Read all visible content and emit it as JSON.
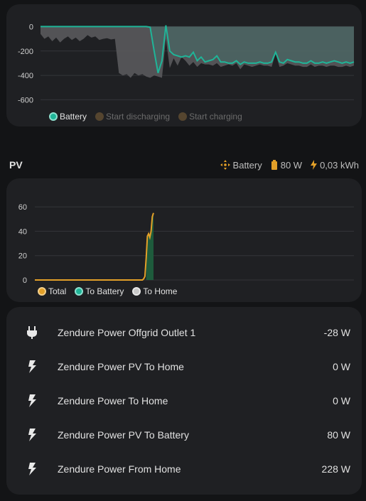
{
  "battery_chart": {
    "chart_data": {
      "type": "area",
      "y_ticks": [
        "0",
        "-200",
        "-400",
        "-600"
      ],
      "ylim": [
        -650,
        20
      ],
      "grid": true,
      "series": [
        {
          "name": "Battery",
          "color": "#1fb598",
          "values": [
            0,
            0,
            0,
            0,
            0,
            0,
            0,
            0,
            0,
            0,
            0,
            0,
            0,
            0,
            0,
            0,
            0,
            0,
            0,
            0,
            0,
            0,
            0,
            0,
            0,
            0,
            0,
            0,
            -5,
            -200,
            -380,
            -280,
            10,
            -200,
            -230,
            -240,
            -250,
            -240,
            -250,
            -210,
            -280,
            -250,
            -290,
            -280,
            -270,
            -240,
            -290,
            -290,
            -300,
            -300,
            -280,
            -310,
            -290,
            -300,
            -300,
            -300,
            -290,
            -300,
            -300,
            -290,
            -210,
            -290,
            -300,
            -270,
            -280,
            -290,
            -290,
            -300,
            -300,
            -280,
            -300,
            -300,
            -290,
            -300,
            -290,
            -280,
            -290,
            -300,
            -290,
            -300,
            -290
          ]
        },
        {
          "name": "Start discharging",
          "color": "#55452f",
          "values": []
        },
        {
          "name": "Start charging",
          "color": "#55452f",
          "values": []
        }
      ],
      "area_values": [
        -60,
        -100,
        -80,
        -120,
        -90,
        -130,
        -100,
        -80,
        -110,
        -90,
        -120,
        -100,
        -70,
        -90,
        -80,
        -110,
        -100,
        -95,
        -105,
        -100,
        -380,
        -400,
        -390,
        -420,
        -380,
        -400,
        -390,
        -410,
        -420,
        -400,
        -410,
        -420,
        -100,
        -340,
        -260,
        -320,
        -250,
        -280,
        -320,
        -290,
        -330,
        -300,
        -310,
        -310,
        -320,
        -300,
        -330,
        -320,
        -310,
        -320,
        -300,
        -350,
        -310,
        -320,
        -330,
        -320,
        -310,
        -320,
        -320,
        -330,
        -220,
        -330,
        -320,
        -300,
        -310,
        -320,
        -320,
        -330,
        -330,
        -310,
        -330,
        -320,
        -320,
        -330,
        -320,
        -320,
        -330,
        -330,
        -320,
        -330,
        -320
      ]
    }
  },
  "pv": {
    "title": "PV",
    "stat_battery_label": "Battery",
    "stat_power": "80 W",
    "stat_energy": "0,03 kWh",
    "accent_orange": "#f0a01e"
  },
  "pv_chart": {
    "chart_data": {
      "type": "line",
      "y_ticks": [
        "60",
        "40",
        "20",
        "0"
      ],
      "ylim": [
        0,
        70
      ],
      "grid": true,
      "series": [
        {
          "name": "Total",
          "color": "#e3a028",
          "values": [
            0,
            0,
            0,
            0,
            0,
            0,
            0,
            0,
            0,
            0,
            0,
            0,
            0,
            0,
            0,
            0,
            0,
            0,
            0,
            0,
            0,
            0,
            0,
            0,
            0,
            0,
            0,
            0,
            0,
            0,
            0,
            0,
            0,
            0,
            0,
            0,
            0,
            0,
            0,
            0,
            0,
            0,
            0,
            0,
            0,
            0,
            0,
            0,
            0,
            0,
            0,
            0,
            0,
            0,
            0,
            0,
            0,
            0,
            0,
            0,
            0,
            0,
            0,
            0,
            0,
            0,
            0,
            0,
            0,
            0,
            0,
            0,
            0,
            0,
            0,
            0,
            0,
            0,
            0,
            0,
            0,
            0,
            0,
            0,
            0,
            0,
            0,
            0,
            0,
            1,
            3,
            18,
            36,
            38,
            35,
            40,
            52,
            55
          ]
        },
        {
          "name": "To Battery",
          "color": "#1fb598",
          "values": []
        },
        {
          "name": "To Home",
          "color": "#c8c8c8",
          "values": []
        }
      ]
    }
  },
  "list": {
    "items": [
      {
        "icon": "plug-icon",
        "name": "Zendure Power Offgrid Outlet 1",
        "value": "-28 W"
      },
      {
        "icon": "lightning-icon",
        "name": "Zendure Power PV To Home",
        "value": "0 W"
      },
      {
        "icon": "lightning-icon",
        "name": "Zendure Power To Home",
        "value": "0 W"
      },
      {
        "icon": "lightning-icon",
        "name": "Zendure Power PV To Battery",
        "value": "80 W"
      },
      {
        "icon": "lightning-icon",
        "name": "Zendure Power From Home",
        "value": "228 W"
      }
    ]
  }
}
